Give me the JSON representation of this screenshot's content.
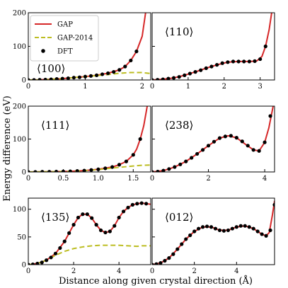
{
  "figure": {
    "ylabel": "Energy difference (eV)",
    "xlabel": "Distance along given crystal direction (Å)"
  },
  "legend": {
    "placement": "top-left of first panel",
    "entries": [
      {
        "label": "GAP",
        "style": "solid-line",
        "color": "#d62728"
      },
      {
        "label": "GAP-2014",
        "style": "dashed-line",
        "color": "#bcbd22"
      },
      {
        "label": "DFT",
        "style": "marker",
        "color": "#000000"
      }
    ]
  },
  "colors": {
    "gap": "#d62728",
    "gap2014": "#bcbd22",
    "dft": "#000000"
  },
  "chart_data": [
    {
      "type": "line",
      "label": "⟨100⟩",
      "xlim": [
        0,
        2.15
      ],
      "ylim": [
        0,
        200
      ],
      "xticks": [
        0,
        1,
        2
      ],
      "yticks": [
        0,
        100,
        200
      ],
      "show_yticklabels": true,
      "show_xticklabels": true,
      "series": [
        {
          "name": "GAP",
          "x": [
            0,
            0.2,
            0.4,
            0.6,
            0.8,
            1.0,
            1.2,
            1.4,
            1.6,
            1.7,
            1.8,
            1.9,
            2.0,
            2.06
          ],
          "y": [
            0,
            0.5,
            2,
            4,
            7,
            10,
            14,
            20,
            30,
            40,
            58,
            85,
            130,
            200
          ]
        },
        {
          "name": "GAP-2014",
          "x": [
            0,
            0.2,
            0.4,
            0.6,
            0.8,
            1.0,
            1.2,
            1.4,
            1.6,
            1.8,
            2.0,
            2.15
          ],
          "y": [
            0,
            0.5,
            2,
            4,
            7,
            10,
            13,
            16,
            20,
            22,
            22,
            19
          ]
        },
        {
          "name": "DFT",
          "x": [
            0,
            0.1,
            0.2,
            0.3,
            0.4,
            0.5,
            0.6,
            0.7,
            0.8,
            0.9,
            1.0,
            1.1,
            1.2,
            1.3,
            1.4,
            1.5,
            1.6,
            1.7,
            1.8,
            1.9
          ],
          "y": [
            0,
            0,
            0.5,
            1,
            2,
            3,
            4,
            5,
            7,
            8,
            10,
            12,
            14,
            17,
            20,
            24,
            30,
            40,
            58,
            85
          ]
        }
      ]
    },
    {
      "type": "line",
      "label": "⟨110⟩",
      "xlim": [
        0,
        3.4
      ],
      "ylim": [
        0,
        200
      ],
      "xticks": [
        0,
        1,
        2,
        3
      ],
      "yticks": [
        0,
        100,
        200
      ],
      "show_yticklabels": false,
      "show_xticklabels": true,
      "series": [
        {
          "name": "GAP",
          "x": [
            0,
            0.3,
            0.6,
            0.9,
            1.2,
            1.5,
            1.8,
            2.1,
            2.4,
            2.7,
            2.9,
            3.05,
            3.15,
            3.25,
            3.32
          ],
          "y": [
            0,
            2,
            6,
            14,
            24,
            35,
            45,
            53,
            55,
            55,
            56,
            70,
            100,
            150,
            200
          ]
        },
        {
          "name": "DFT",
          "x": [
            0,
            0.15,
            0.3,
            0.45,
            0.6,
            0.75,
            0.9,
            1.05,
            1.2,
            1.35,
            1.5,
            1.65,
            1.8,
            1.95,
            2.1,
            2.25,
            2.4,
            2.55,
            2.7,
            2.85,
            3.0,
            3.15
          ],
          "y": [
            0,
            0.5,
            2,
            4,
            6,
            9,
            14,
            19,
            24,
            29,
            35,
            40,
            45,
            50,
            53,
            55,
            55,
            55,
            55,
            56,
            62,
            100
          ]
        }
      ]
    },
    {
      "type": "line",
      "label": "⟨111⟩",
      "xlim": [
        0,
        1.75
      ],
      "ylim": [
        0,
        200
      ],
      "xticks": [
        0,
        0.5,
        1.0,
        1.5
      ],
      "yticks": [
        0,
        100,
        200
      ],
      "xticklabels": [
        "0",
        "0.5",
        "1.0",
        "1.5"
      ],
      "show_yticklabels": true,
      "show_xticklabels": true,
      "series": [
        {
          "name": "GAP",
          "x": [
            0,
            0.2,
            0.4,
            0.6,
            0.8,
            1.0,
            1.2,
            1.3,
            1.4,
            1.5,
            1.55,
            1.6,
            1.65,
            1.7
          ],
          "y": [
            0,
            0.5,
            1,
            2,
            4,
            8,
            15,
            22,
            32,
            52,
            70,
            100,
            140,
            200
          ]
        },
        {
          "name": "GAP-2014",
          "x": [
            0,
            0.2,
            0.4,
            0.6,
            0.8,
            1.0,
            1.2,
            1.4,
            1.6,
            1.75
          ],
          "y": [
            0,
            0.5,
            1,
            2,
            4,
            7,
            12,
            16,
            20,
            21
          ]
        },
        {
          "name": "DFT",
          "x": [
            0,
            0.1,
            0.2,
            0.3,
            0.4,
            0.5,
            0.6,
            0.7,
            0.8,
            0.9,
            1.0,
            1.1,
            1.2,
            1.3,
            1.4,
            1.5,
            1.6
          ],
          "y": [
            0,
            0,
            0.5,
            0.5,
            1,
            1.5,
            2,
            3,
            4,
            6,
            8,
            11,
            15,
            22,
            32,
            52,
            100
          ]
        }
      ]
    },
    {
      "type": "line",
      "label": "⟨238⟩",
      "xlim": [
        0,
        4.35
      ],
      "ylim": [
        0,
        200
      ],
      "xticks": [
        0,
        2,
        4
      ],
      "yticks": [
        0,
        100,
        200
      ],
      "show_yticklabels": false,
      "show_xticklabels": true,
      "series": [
        {
          "name": "GAP",
          "x": [
            0,
            0.4,
            0.8,
            1.2,
            1.6,
            2.0,
            2.4,
            2.7,
            3.0,
            3.3,
            3.6,
            3.8,
            4.0,
            4.15,
            4.3
          ],
          "y": [
            0,
            4,
            15,
            32,
            55,
            80,
            103,
            110,
            104,
            85,
            67,
            64,
            90,
            135,
            200
          ]
        },
        {
          "name": "DFT",
          "x": [
            0,
            0.2,
            0.4,
            0.6,
            0.8,
            1.0,
            1.2,
            1.4,
            1.6,
            1.8,
            2.0,
            2.2,
            2.4,
            2.6,
            2.8,
            3.0,
            3.2,
            3.4,
            3.6,
            3.8,
            4.0,
            4.2
          ],
          "y": [
            0,
            1,
            4,
            9,
            15,
            23,
            32,
            43,
            55,
            67,
            80,
            92,
            103,
            108,
            110,
            104,
            93,
            80,
            67,
            64,
            90,
            170
          ]
        }
      ]
    },
    {
      "type": "line",
      "label": "⟨135⟩",
      "xlim": [
        0,
        5.4
      ],
      "ylim": [
        0,
        120
      ],
      "xticks": [
        0,
        2,
        4
      ],
      "yticks": [
        0,
        50,
        100
      ],
      "show_yticklabels": true,
      "show_xticklabels": true,
      "series": [
        {
          "name": "GAP",
          "x": [
            0,
            0.4,
            0.8,
            1.2,
            1.6,
            2.0,
            2.2,
            2.4,
            2.6,
            2.8,
            3.0,
            3.2,
            3.4,
            3.6,
            3.8,
            4.0,
            4.2,
            4.4,
            4.6,
            4.8,
            5.0,
            5.2,
            5.4
          ],
          "y": [
            0,
            2,
            8,
            20,
            42,
            72,
            85,
            91,
            91,
            84,
            72,
            62,
            58,
            60,
            70,
            85,
            96,
            103,
            108,
            110,
            111,
            110,
            109
          ]
        },
        {
          "name": "GAP-2014",
          "x": [
            0,
            0.4,
            0.8,
            1.2,
            1.6,
            2.0,
            2.4,
            2.8,
            3.2,
            3.6,
            4.0,
            4.4,
            4.8,
            5.0,
            5.4
          ],
          "y": [
            0,
            2,
            8,
            17,
            24,
            29,
            32,
            34,
            35,
            35,
            35,
            34,
            33,
            34,
            34
          ]
        },
        {
          "name": "DFT",
          "x": [
            0,
            0.2,
            0.4,
            0.6,
            0.8,
            1.0,
            1.2,
            1.4,
            1.6,
            1.8,
            2.0,
            2.2,
            2.4,
            2.6,
            2.8,
            3.0,
            3.2,
            3.4,
            3.6,
            3.8,
            4.0,
            4.2,
            4.4,
            4.6,
            4.8,
            5.0,
            5.2
          ],
          "y": [
            0,
            0.5,
            2,
            4,
            8,
            13,
            20,
            30,
            42,
            57,
            72,
            85,
            91,
            91,
            84,
            72,
            62,
            58,
            60,
            70,
            85,
            96,
            103,
            108,
            110,
            111,
            110
          ]
        }
      ]
    },
    {
      "type": "line",
      "label": "⟨012⟩",
      "xlim": [
        0,
        5.8
      ],
      "ylim": [
        0,
        120
      ],
      "xticks": [
        0,
        2,
        4
      ],
      "yticks": [
        0,
        50,
        100
      ],
      "show_yticklabels": false,
      "show_xticklabels": true,
      "series": [
        {
          "name": "GAP",
          "x": [
            0,
            0.4,
            0.8,
            1.2,
            1.6,
            2.0,
            2.4,
            2.8,
            3.2,
            3.6,
            4.0,
            4.4,
            4.8,
            5.2,
            5.4,
            5.55,
            5.7,
            5.8
          ],
          "y": [
            0,
            3,
            12,
            28,
            46,
            60,
            68,
            68,
            62,
            62,
            68,
            70,
            65,
            55,
            52,
            58,
            90,
            115
          ]
        },
        {
          "name": "DFT",
          "x": [
            0,
            0.2,
            0.4,
            0.6,
            0.8,
            1.0,
            1.2,
            1.4,
            1.6,
            1.8,
            2.0,
            2.2,
            2.4,
            2.6,
            2.8,
            3.0,
            3.2,
            3.4,
            3.6,
            3.8,
            4.0,
            4.2,
            4.4,
            4.6,
            4.8,
            5.0,
            5.2,
            5.4,
            5.6,
            5.8
          ],
          "y": [
            0,
            1,
            3,
            7,
            12,
            19,
            28,
            37,
            46,
            53,
            60,
            65,
            68,
            69,
            68,
            65,
            62,
            61,
            62,
            65,
            68,
            70,
            70,
            68,
            65,
            60,
            55,
            52,
            62,
            108
          ]
        }
      ]
    }
  ]
}
